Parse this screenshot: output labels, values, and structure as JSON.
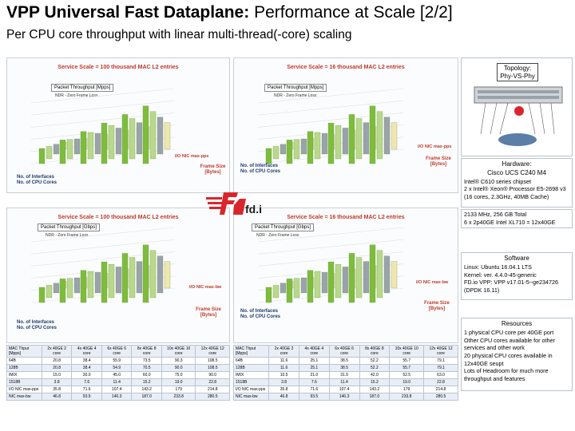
{
  "header": {
    "title_bold": "VPP Universal Fast Dataplane:",
    "title_rest": " Performance at Scale [2/2]",
    "subtitle": "Per CPU core throughput with linear multi-thread(-core) scaling"
  },
  "panels": [
    {
      "head": "Service Scale = 100 thousand MAC L2 entries",
      "chart_label": "Packet Throughput [Mpps]",
      "chart_sub": "NDR - Zero Frame Loss",
      "legend": "I/O NIC max-pps"
    },
    {
      "head": "Service Scale = 16 thousand MAC L2 entries",
      "chart_label": "Packet Throughput [Mpps]",
      "chart_sub": "NDR - Zero Frame Loss",
      "legend": "I/O NIC max-pps"
    },
    {
      "head": "Service Scale = 100 thousand MAC L2 entries",
      "chart_label": "Packet Throughput [Gbps]",
      "chart_sub": "NDR - Zero Frame Loss",
      "legend": "I/O NIC max-bw"
    },
    {
      "head": "Service Scale = 16 thousand MAC L2 entries",
      "chart_label": "Packet Throughput [Gbps]",
      "chart_sub": "NDR - Zero Frame Loss",
      "legend": "I/O NIC max-bw"
    }
  ],
  "axis": {
    "interfaces": "No. of Interfaces",
    "cores": "No. of CPU Cores",
    "frame": "Frame Size [Bytes]"
  },
  "tables": {
    "headers": [
      "MAC Thput [Mpps]",
      "2x 40GE 2 core",
      "4x 40GE 4 core",
      "6x 40GE 6 core",
      "8x 40GE 8 core",
      "10x 40GE 10 core",
      "12x 40GE 12 core"
    ],
    "rows": [
      [
        "64B",
        "20.8",
        "38.4",
        "55.9",
        "73.5",
        "90.3",
        "108.5"
      ],
      [
        "128B",
        "20.8",
        "38.4",
        "54.9",
        "70.5",
        "90.0",
        "108.5"
      ],
      [
        "IMIX",
        "15.0",
        "30.0",
        "45.0",
        "60.0",
        "75.0",
        "90.0"
      ],
      [
        "1518B",
        "3.8",
        "7.6",
        "11.4",
        "15.2",
        "19.0",
        "22.8"
      ]
    ],
    "footer": [
      [
        "I/O NIC max-pps",
        "35.8",
        "71.6",
        "107.4",
        "143.2",
        "179",
        "214.8"
      ],
      [
        "NIC max-bw",
        "46.8",
        "93.5",
        "140.3",
        "187.0",
        "233.8",
        "280.5"
      ]
    ],
    "headers2": [
      "MAC Thput [Mpps]",
      "2x 40GE 2 core",
      "4x 40GE 4 core",
      "6x 40GE 6 core",
      "8x 40GE 8 core",
      "10x 40GE 10 core",
      "12x 40GE 12 core"
    ],
    "rows2": [
      [
        "64B",
        "11.6",
        "25.1",
        "38.5",
        "52.2",
        "55.7",
        "79.1"
      ],
      [
        "128B",
        "11.6",
        "25.1",
        "38.5",
        "52.2",
        "55.7",
        "79.1"
      ],
      [
        "IMIX",
        "10.5",
        "21.0",
        "31.5",
        "42.0",
        "52.5",
        "63.0"
      ],
      [
        "1518B",
        "3.8",
        "7.6",
        "11.4",
        "15.2",
        "19.0",
        "22.8"
      ]
    ],
    "footer2": [
      [
        "I/O NIC max-pps",
        "35.8",
        "71.6",
        "107.4",
        "143.2",
        "179",
        "214.8"
      ],
      [
        "NIC max-bw",
        "46.8",
        "93.5",
        "140.3",
        "187.0",
        "233.8",
        "280.5"
      ]
    ]
  },
  "topology": {
    "label": "Topology: Phy-VS-Phy"
  },
  "hardware": {
    "title": "Hardware:",
    "model": "Cisco UCS C240 M4",
    "lines": [
      "Intel® C610 series chipset",
      "2 x Intel® Xeon® Processor E5-2698 v3 (16 cores, 2.3GHz, 40MB Cache)",
      "2133 MHz, 256 GB Total",
      "6 x 2p40GE Intel XL710 = 12x40GE"
    ]
  },
  "software": {
    "title": "Software",
    "lines": [
      "Linux: Ubuntu 16.04.1 LTS",
      "Kernel: ver. 4.4.0-45-generic",
      "FD.io VPP: VPP v17.01-5~ge234726 (DPDK 16.11)"
    ]
  },
  "resources": {
    "title": "Resources",
    "lines": [
      "1 physical CPU core per 40GE port",
      "Other CPU cores available for other services and other work",
      "20 physical CPU cores available in 12x40GE seupt",
      "Lots of Headroom for much more throughput and features"
    ]
  },
  "logo": {
    "text": "fd.io"
  },
  "colors": {
    "bar_green": "#7dbd3b",
    "bar_light": "#b8d98a",
    "bar_grey": "#9aa3ab",
    "bar_cream": "#efe7b0",
    "accent_red": "#c0392b",
    "navy": "#1f3b6e"
  }
}
